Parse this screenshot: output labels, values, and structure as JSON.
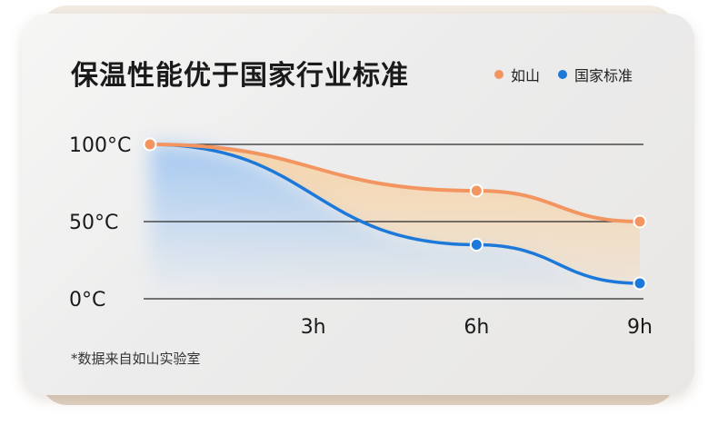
{
  "title": "保温性能优于国家行业标准",
  "footnote": "*数据来自如山实验室",
  "colors": {
    "series_a": "#f39561",
    "series_b": "#1d79d9",
    "fill_a": "#f7d3a6",
    "fill_b": "#8fbdf2",
    "grid": "#2a2a2a"
  },
  "chart_data": {
    "type": "line",
    "title": "保温性能优于国家行业标准",
    "x": [
      0,
      6,
      9
    ],
    "x_tick_labels": [
      "3h",
      "6h",
      "9h"
    ],
    "x_ticks": [
      3,
      6,
      9
    ],
    "y_tick_labels": [
      "100°C",
      "50°C",
      "0°C"
    ],
    "y_ticks": [
      100,
      50,
      0
    ],
    "ylim": [
      0,
      100
    ],
    "xlim": [
      0,
      9
    ],
    "grid": "horizontal",
    "legend_position": "top-right",
    "series": [
      {
        "name": "如山",
        "values": [
          100,
          70,
          50
        ],
        "color": "#f39561"
      },
      {
        "name": "国家标准",
        "values": [
          100,
          35,
          10
        ],
        "color": "#1d79d9"
      }
    ]
  }
}
